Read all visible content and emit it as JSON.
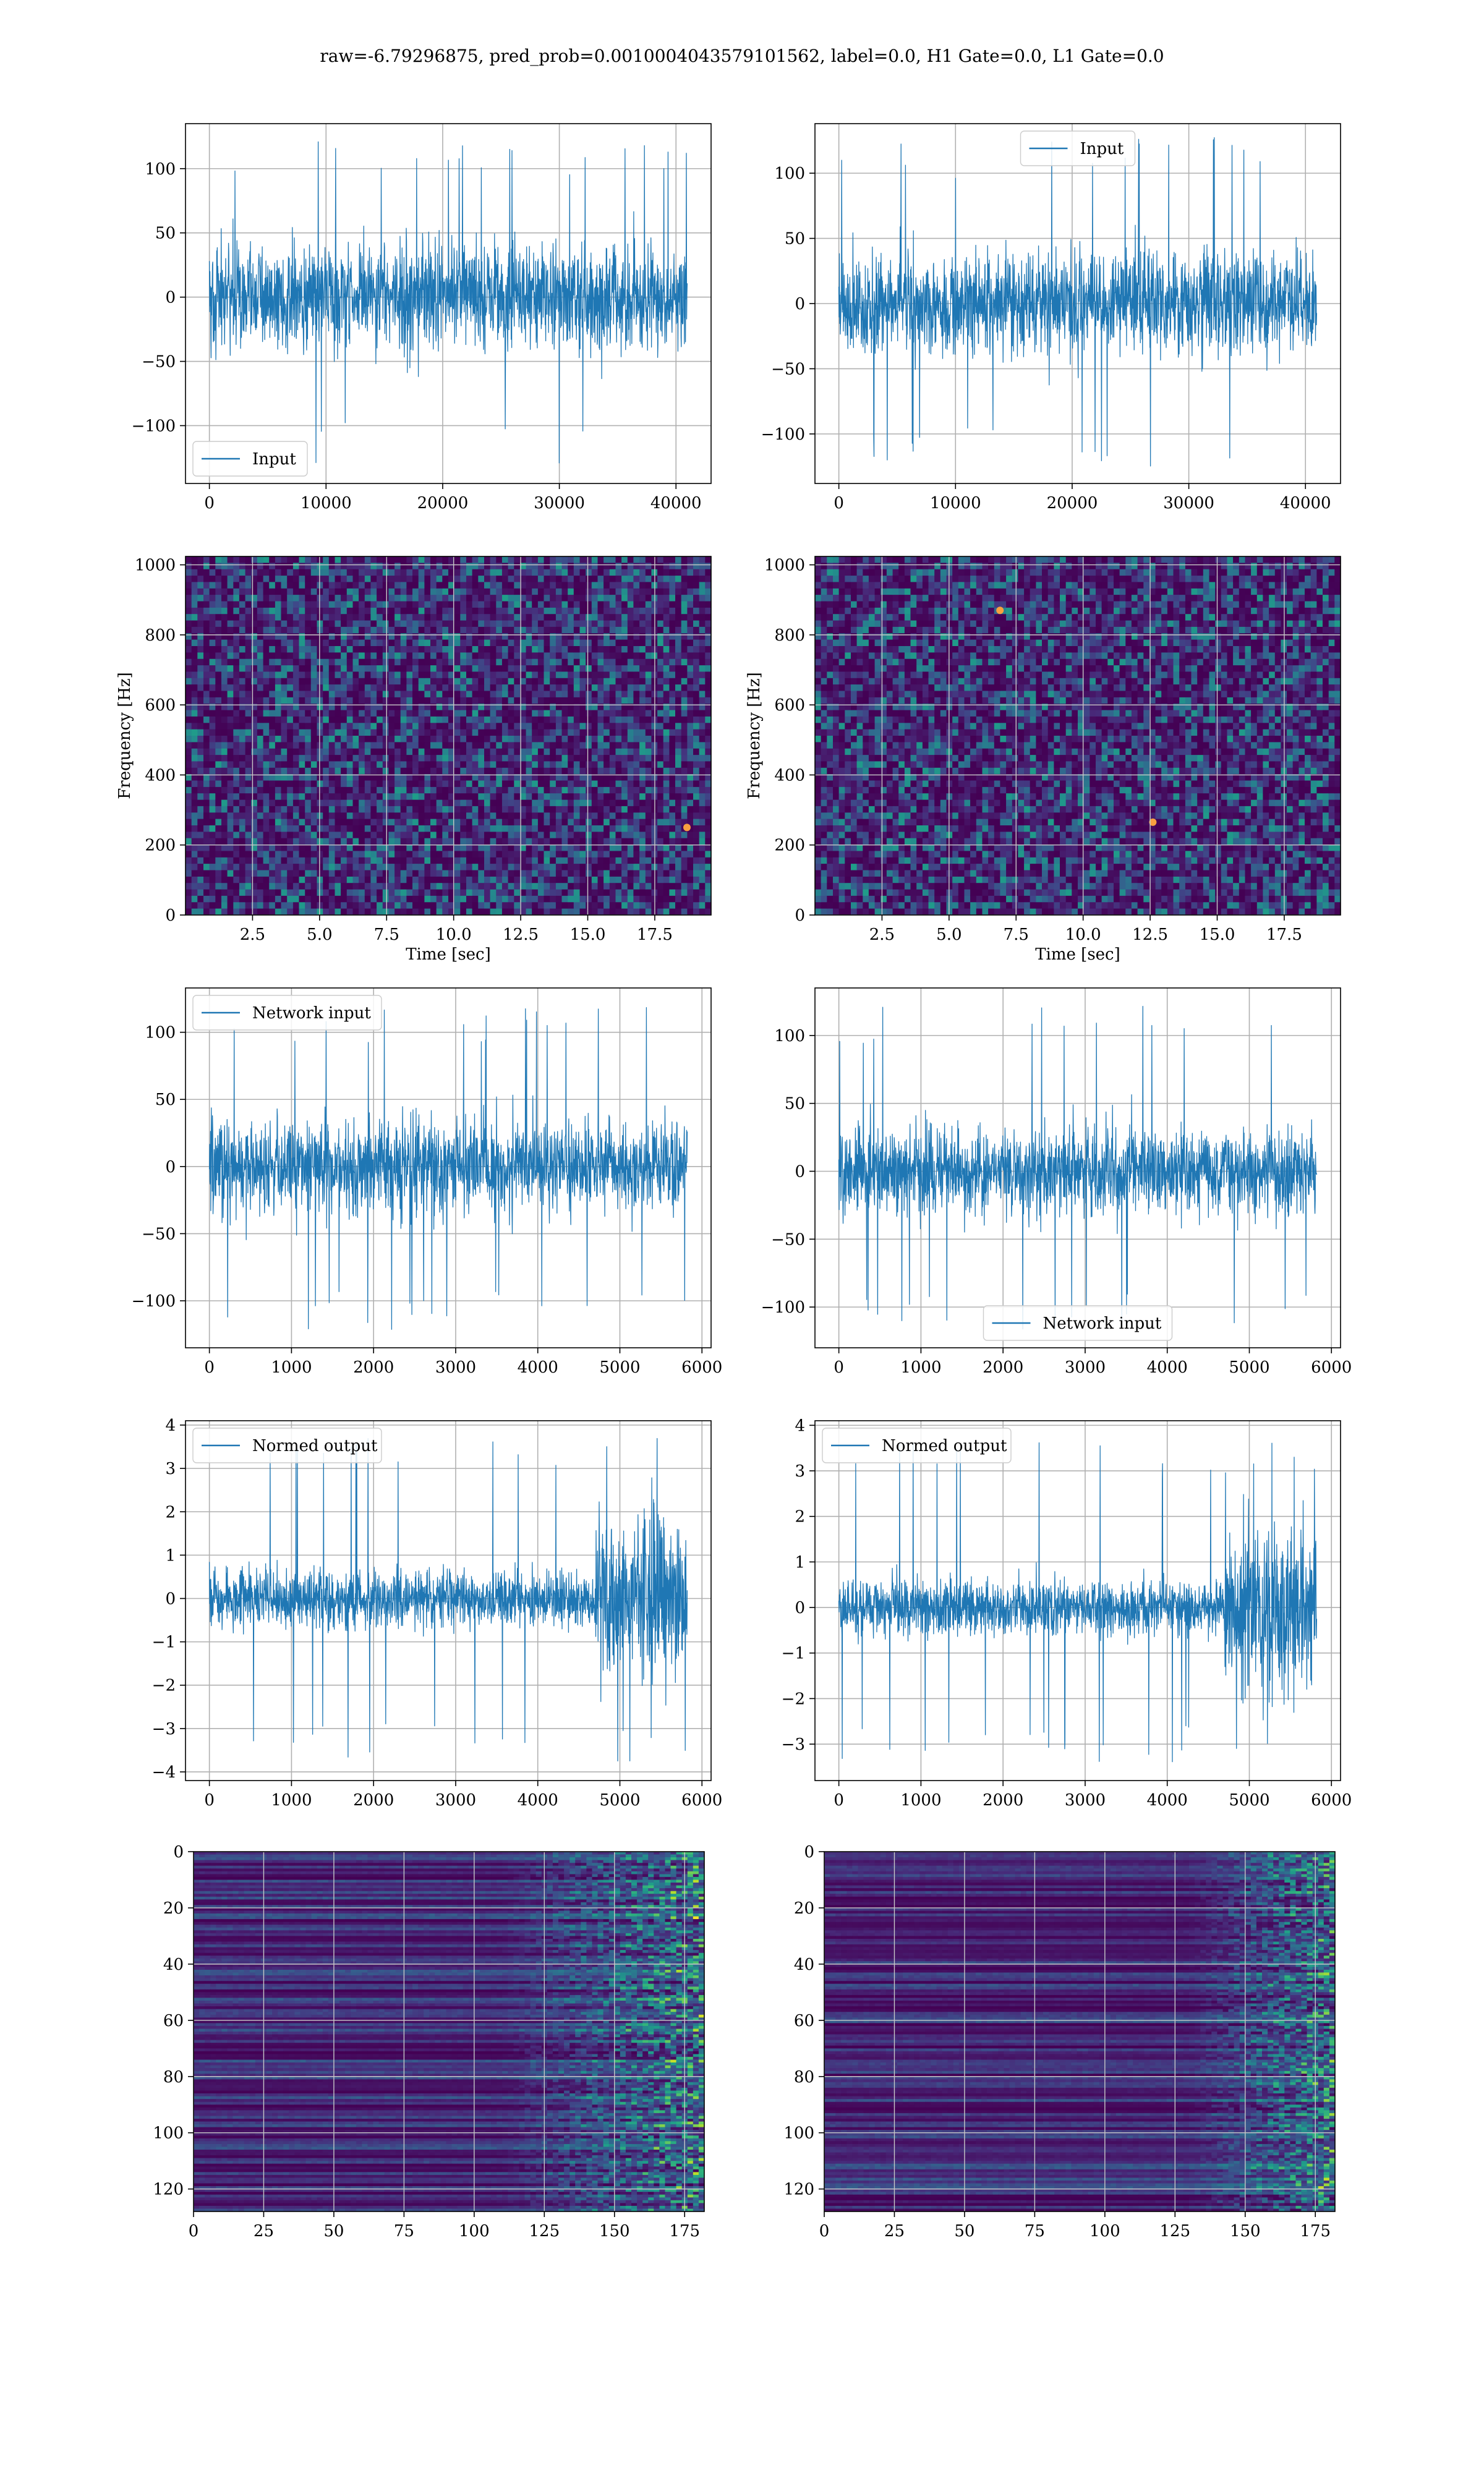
{
  "suptitle": "raw=-6.79296875, pred_prob=0.0010004043579101562, label=0.0, H1 Gate=0.0, L1 Gate=0.0",
  "colors": {
    "series": "#1f77b4",
    "grid": "#b0b0b0",
    "viridis_low": "#440154",
    "viridis_mid": "#21918c",
    "viridis_high": "#fde725"
  },
  "chart_data": [
    {
      "id": "h1-input",
      "type": "line",
      "series": [
        {
          "name": "Input",
          "n": 40960,
          "amplitude": 28,
          "spike_max": 122,
          "spike_min": -130
        }
      ],
      "xlim": [
        -2048,
        43008
      ],
      "ylim": [
        -145,
        135
      ],
      "xticks": [
        0,
        10000,
        20000,
        30000,
        40000
      ],
      "yticks": [
        -100,
        -50,
        0,
        50,
        100
      ],
      "legend": "lower-left",
      "grid": true
    },
    {
      "id": "l1-input",
      "type": "line",
      "series": [
        {
          "name": "Input",
          "n": 40960,
          "amplitude": 27,
          "spike_max": 128,
          "spike_min": -125
        }
      ],
      "xlim": [
        -2048,
        43008
      ],
      "ylim": [
        -138,
        138
      ],
      "xticks": [
        0,
        10000,
        20000,
        30000,
        40000
      ],
      "yticks": [
        -100,
        -50,
        0,
        50,
        100
      ],
      "legend": "upper-center",
      "grid": true
    },
    {
      "id": "h1-spectrogram",
      "type": "heatmap",
      "xlabel": "Time [sec]",
      "ylabel": "Frequency [Hz]",
      "xlim": [
        0,
        19.6
      ],
      "ylim": [
        0,
        1024
      ],
      "xticks": [
        2.5,
        5.0,
        7.5,
        10.0,
        12.5,
        15.0,
        17.5
      ],
      "yticks": [
        0,
        200,
        400,
        600,
        800,
        1000
      ],
      "colormap": "viridis",
      "grid": true,
      "hot_spots": [
        {
          "t": 18.7,
          "f": 250
        }
      ]
    },
    {
      "id": "l1-spectrogram",
      "type": "heatmap",
      "xlabel": "Time [sec]",
      "ylabel": "Frequency [Hz]",
      "xlim": [
        0,
        19.6
      ],
      "ylim": [
        0,
        1024
      ],
      "xticks": [
        2.5,
        5.0,
        7.5,
        10.0,
        12.5,
        15.0,
        17.5
      ],
      "yticks": [
        0,
        200,
        400,
        600,
        800,
        1000
      ],
      "colormap": "viridis",
      "grid": true,
      "hot_spots": [
        {
          "t": 6.9,
          "f": 870
        },
        {
          "t": 12.6,
          "f": 265
        }
      ]
    },
    {
      "id": "h1-network-input",
      "type": "line",
      "series": [
        {
          "name": "Network input",
          "n": 5820,
          "amplitude": 24,
          "spike_max": 122,
          "spike_min": -122
        }
      ],
      "xlim": [
        -291,
        6111
      ],
      "ylim": [
        -135,
        133
      ],
      "xticks": [
        0,
        1000,
        2000,
        3000,
        4000,
        5000,
        6000
      ],
      "yticks": [
        -100,
        -50,
        0,
        50,
        100
      ],
      "legend": "upper-left",
      "grid": true
    },
    {
      "id": "l1-network-input",
      "type": "line",
      "series": [
        {
          "name": "Network input",
          "n": 5820,
          "amplitude": 22,
          "spike_max": 123,
          "spike_min": -118
        }
      ],
      "xlim": [
        -291,
        6111
      ],
      "ylim": [
        -130,
        135
      ],
      "xticks": [
        0,
        1000,
        2000,
        3000,
        4000,
        5000,
        6000
      ],
      "yticks": [
        -100,
        -50,
        0,
        50,
        100
      ],
      "legend": "lower-center",
      "grid": true
    },
    {
      "id": "h1-normed-output",
      "type": "line",
      "series": [
        {
          "name": "Normed output",
          "n": 5820,
          "amplitude": 0.45,
          "burst_start": 4700,
          "burst_amplitude": 1.3,
          "spike_max": 3.7,
          "spike_min": -3.8
        }
      ],
      "xlim": [
        -291,
        6111
      ],
      "ylim": [
        -4.2,
        4.1
      ],
      "xticks": [
        0,
        1000,
        2000,
        3000,
        4000,
        5000,
        6000
      ],
      "yticks": [
        -4,
        -3,
        -2,
        -1,
        0,
        1,
        2,
        3,
        4
      ],
      "legend": "upper-left",
      "grid": true
    },
    {
      "id": "l1-normed-output",
      "type": "line",
      "series": [
        {
          "name": "Normed output",
          "n": 5820,
          "amplitude": 0.42,
          "burst_start": 4700,
          "burst_amplitude": 1.2,
          "spike_max": 3.7,
          "spike_min": -3.4
        }
      ],
      "xlim": [
        -291,
        6111
      ],
      "ylim": [
        -3.8,
        4.1
      ],
      "xticks": [
        0,
        1000,
        2000,
        3000,
        4000,
        5000,
        6000
      ],
      "yticks": [
        -3,
        -2,
        -1,
        0,
        1,
        2,
        3,
        4
      ],
      "legend": "upper-left",
      "grid": true
    },
    {
      "id": "h1-embedding",
      "type": "heatmap",
      "xlim": [
        0,
        182
      ],
      "ylim": [
        128,
        0
      ],
      "xticks": [
        0,
        25,
        50,
        75,
        100,
        125,
        150,
        175
      ],
      "yticks": [
        0,
        20,
        40,
        60,
        80,
        100,
        120
      ],
      "colormap": "viridis",
      "grid": true,
      "active_from": 110
    },
    {
      "id": "l1-embedding",
      "type": "heatmap",
      "xlim": [
        0,
        182
      ],
      "ylim": [
        128,
        0
      ],
      "xticks": [
        0,
        25,
        50,
        75,
        100,
        125,
        150,
        175
      ],
      "yticks": [
        0,
        20,
        40,
        60,
        80,
        100,
        120
      ],
      "colormap": "viridis",
      "grid": true,
      "active_from": 130
    }
  ]
}
